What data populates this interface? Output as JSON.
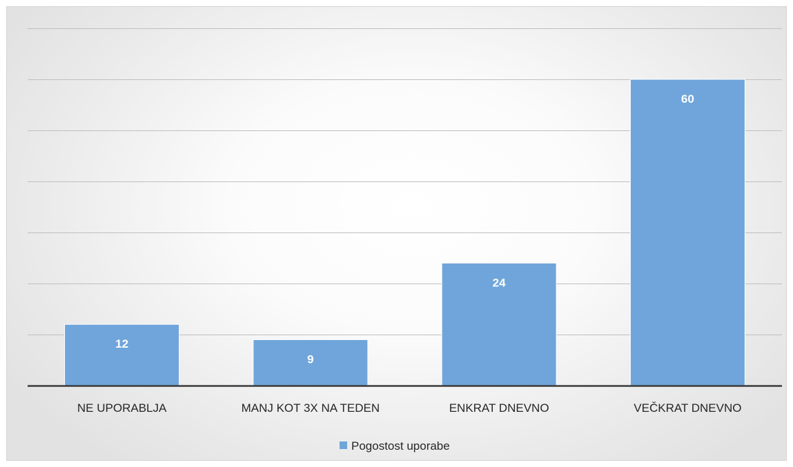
{
  "chart_data": {
    "type": "bar",
    "title": "",
    "xlabel": "",
    "ylabel": "",
    "categories": [
      "NE UPORABLJA",
      "MANJ KOT 3X NA TEDEN",
      "ENKRAT DNEVNO",
      "VEČKRAT DNEVNO"
    ],
    "series": [
      {
        "name": "Pogostost uporabe",
        "values": [
          12,
          9,
          24,
          60
        ],
        "color": "#6fa5da"
      }
    ],
    "ylim": [
      0,
      70
    ],
    "y_gridline_step": 10,
    "y_tick_labels_visible": false,
    "data_labels": true,
    "grid": true,
    "legend": "bottom"
  },
  "colors": {
    "bar_fill": "#6fa5da",
    "bar_edge": "#ffffff",
    "gridline": "#bfbfbf",
    "baseline": "#3a3a3a",
    "text": "#262626",
    "data_label": "#ffffff"
  }
}
